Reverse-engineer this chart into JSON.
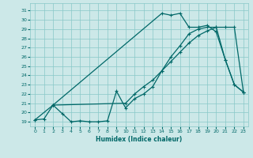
{
  "xlabel": "Humidex (Indice chaleur)",
  "bg_color": "#cce8e8",
  "grid_color": "#88c8c8",
  "line_color": "#006868",
  "xlim": [
    -0.5,
    23.5
  ],
  "ylim": [
    18.5,
    31.8
  ],
  "yticks": [
    19,
    20,
    21,
    22,
    23,
    24,
    25,
    26,
    27,
    28,
    29,
    30,
    31
  ],
  "xticks": [
    0,
    1,
    2,
    3,
    4,
    5,
    6,
    7,
    8,
    9,
    10,
    11,
    12,
    13,
    14,
    15,
    16,
    17,
    18,
    19,
    20,
    21,
    22,
    23
  ],
  "line1_x": [
    0,
    1,
    2,
    3,
    4,
    5,
    6,
    7,
    8,
    9,
    10,
    11,
    12,
    13,
    14,
    15,
    16,
    17,
    18,
    19,
    20,
    21,
    22,
    23
  ],
  "line1_y": [
    19.2,
    19.3,
    20.8,
    19.9,
    19.0,
    19.1,
    19.0,
    19.0,
    19.1,
    22.3,
    20.5,
    21.5,
    22.0,
    22.8,
    24.5,
    26.0,
    27.2,
    28.5,
    29.0,
    29.2,
    29.2,
    25.7,
    23.0,
    22.2
  ],
  "line2_x": [
    0,
    2,
    10,
    11,
    12,
    13,
    14,
    15,
    16,
    17,
    18,
    19,
    20,
    21,
    22,
    23
  ],
  "line2_y": [
    19.2,
    20.8,
    21.0,
    22.0,
    22.8,
    23.5,
    24.5,
    25.5,
    26.5,
    27.5,
    28.3,
    28.8,
    29.2,
    29.2,
    29.2,
    22.2
  ],
  "line3_x": [
    2,
    14,
    15,
    16,
    17,
    18,
    19,
    20,
    21,
    22,
    23
  ],
  "line3_y": [
    20.8,
    30.7,
    30.5,
    30.7,
    29.2,
    29.2,
    29.4,
    28.7,
    25.7,
    23.0,
    22.2
  ]
}
